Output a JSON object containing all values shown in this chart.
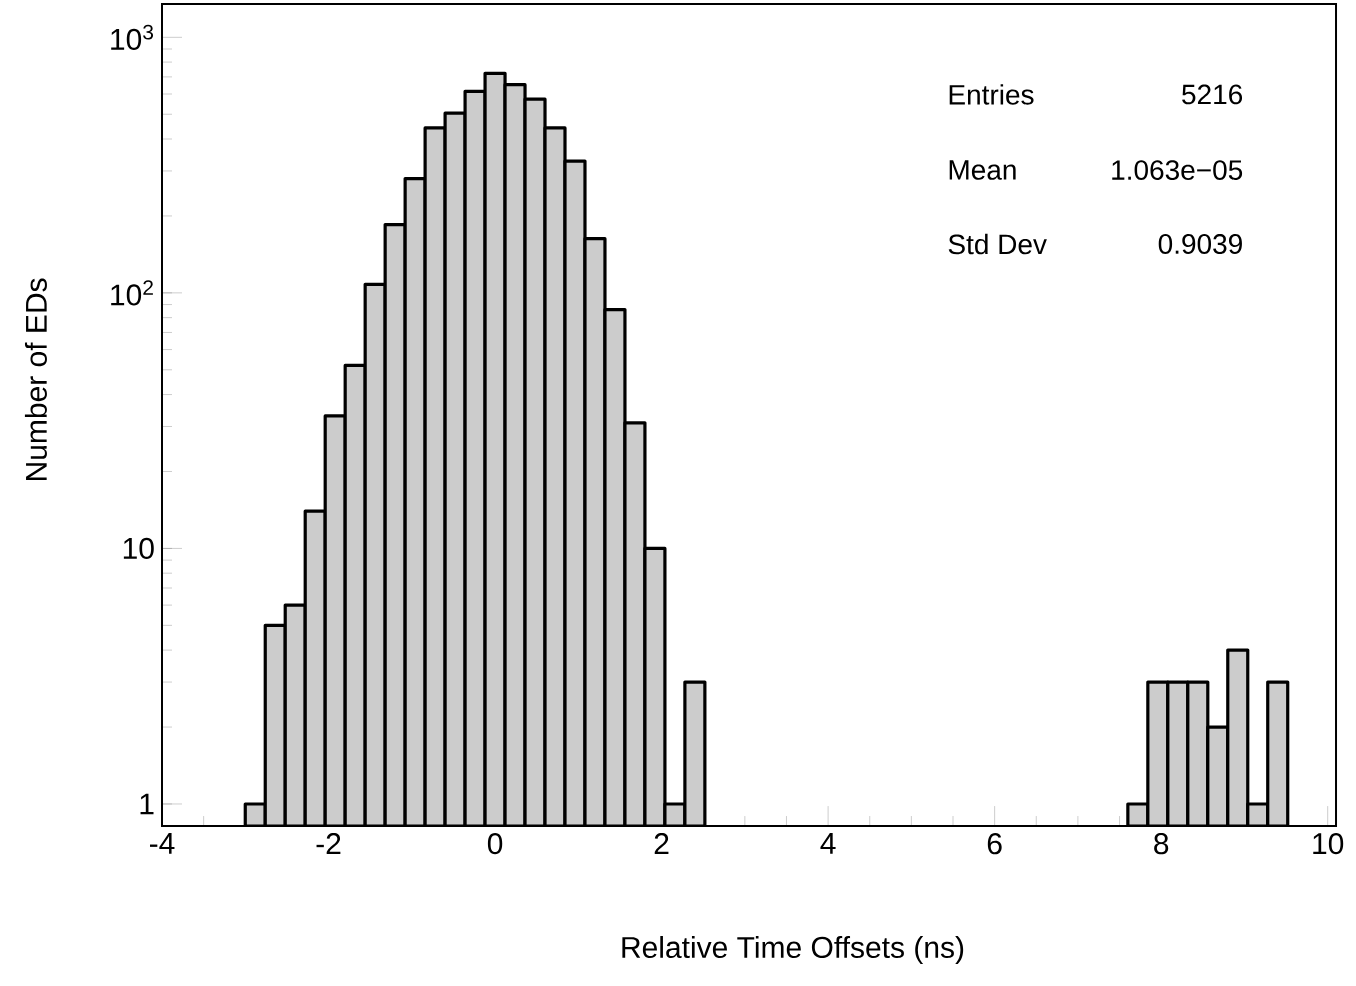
{
  "chart_data": {
    "type": "histogram",
    "xlabel": "Relative Time Offsets (ns)",
    "ylabel": "Number of EDs",
    "bins": [
      -3.0,
      -2.76,
      -2.52,
      -2.28,
      -2.04,
      -1.8,
      -1.56,
      -1.32,
      -1.08,
      -0.84,
      -0.6,
      -0.36,
      -0.12,
      0.12,
      0.36,
      0.6,
      0.84,
      1.08,
      1.32,
      1.56,
      1.8,
      2.04,
      2.28,
      2.52,
      7.6,
      7.84,
      8.08,
      8.32,
      8.56,
      8.8,
      9.04,
      9.28,
      9.52
    ],
    "values": [
      1,
      5,
      6,
      14,
      33,
      52,
      108,
      185,
      280,
      442,
      505,
      615,
      723,
      653,
      573,
      442,
      328,
      163,
      86,
      31,
      10,
      1,
      3,
      null,
      1,
      3,
      3,
      3,
      2,
      4,
      1,
      3
    ],
    "color": "#cccccc",
    "log": "y",
    "xlim": [
      -4,
      10.1
    ],
    "ylim": [
      0.82,
      1350
    ],
    "xticks": [
      -4,
      -2,
      0,
      2,
      4,
      6,
      8,
      10
    ],
    "yticks": [
      1,
      10,
      {
        "value": 100,
        "label": "10$^{2}$"
      },
      {
        "value": 1000,
        "label": "10$^{3}$"
      }
    ],
    "annotations": [
      "Entries",
      "5216",
      "Mean",
      "1.063e−05",
      "Std Dev",
      "0.9039"
    ]
  }
}
